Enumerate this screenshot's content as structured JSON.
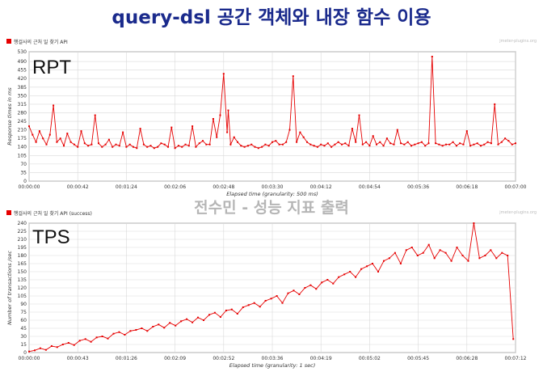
{
  "page": {
    "title": "query-dsl 공간 객체와 내장 함수 이용",
    "watermark": "전수민 - 성능 지표 출력",
    "brand": "jmeter-plugins.org"
  },
  "chart_data": [
    {
      "type": "line",
      "label": "RPT",
      "legend": "행걸사의 근처 일 찾기 API",
      "xlabel": "Elapsed time (granularity: 500 ms)",
      "ylabel": "Response times in ms",
      "ylim": [
        0,
        530
      ],
      "yticks": [
        0,
        35,
        70,
        105,
        140,
        175,
        210,
        245,
        280,
        315,
        350,
        385,
        420,
        455,
        490,
        530
      ],
      "xlim": [
        0,
        420
      ],
      "xticks": [
        "00:00:00",
        "00:00:42",
        "00:01:24",
        "00:02:06",
        "00:02:48",
        "00:03:30",
        "00:04:12",
        "00:04:54",
        "00:05:36",
        "00:06:18",
        "00:07:00"
      ],
      "grid": true,
      "color": "#e60000",
      "series": [
        {
          "x": [
            0,
            3,
            6,
            9,
            12,
            15,
            18,
            21,
            24,
            27,
            30,
            33,
            36,
            39,
            42,
            45,
            48,
            51,
            54,
            57,
            60,
            63,
            66,
            69,
            72,
            75,
            78,
            81,
            84,
            87,
            90,
            93,
            96,
            99,
            102,
            105,
            108,
            111,
            114,
            117,
            120,
            123,
            126,
            129,
            132,
            135,
            138,
            141,
            144,
            147,
            150,
            153,
            156,
            159,
            162,
            165,
            168,
            171,
            172,
            174,
            177,
            180,
            183,
            186,
            189,
            192,
            195,
            198,
            201,
            204,
            207,
            210,
            213,
            216,
            219,
            222,
            225,
            228,
            231,
            234,
            237,
            240,
            243,
            246,
            249,
            252,
            255,
            258,
            261,
            264,
            267,
            270,
            273,
            276,
            279,
            282,
            285,
            288,
            291,
            294,
            297,
            300,
            303,
            306,
            309,
            312,
            315,
            318,
            321,
            324,
            327,
            330,
            333,
            336,
            339,
            342,
            345,
            348,
            351,
            354,
            357,
            360,
            363,
            366,
            369,
            372,
            375,
            378,
            381,
            384,
            387,
            390,
            393,
            396,
            399,
            402,
            405,
            408,
            411,
            414,
            417,
            420
          ],
          "y": [
            225,
            190,
            160,
            205,
            175,
            150,
            190,
            310,
            160,
            175,
            145,
            195,
            160,
            150,
            140,
            205,
            155,
            145,
            150,
            270,
            155,
            140,
            150,
            170,
            140,
            150,
            145,
            200,
            140,
            150,
            140,
            135,
            215,
            150,
            140,
            145,
            135,
            140,
            155,
            150,
            140,
            220,
            135,
            145,
            140,
            150,
            145,
            225,
            140,
            155,
            165,
            150,
            150,
            255,
            180,
            270,
            440,
            200,
            290,
            150,
            180,
            160,
            145,
            140,
            145,
            150,
            140,
            135,
            140,
            150,
            145,
            160,
            165,
            150,
            150,
            160,
            210,
            430,
            160,
            200,
            180,
            160,
            150,
            145,
            140,
            150,
            145,
            155,
            140,
            150,
            160,
            150,
            155,
            145,
            215,
            160,
            270,
            150,
            160,
            145,
            185,
            150,
            160,
            145,
            175,
            155,
            150,
            210,
            155,
            150,
            160,
            145,
            150,
            155,
            160,
            145,
            155,
            510,
            155,
            150,
            145,
            150,
            150,
            160,
            145,
            155,
            150,
            205,
            145,
            150,
            155,
            145,
            150,
            160,
            155,
            315,
            150,
            160,
            175,
            165,
            150,
            155
          ]
        }
      ]
    },
    {
      "type": "line",
      "label": "TPS",
      "legend": "행걸사의 근처 일 찾기 API (success)",
      "xlabel": "Elapsed time (granularity: 1 sec)",
      "ylabel": "Number of transactions /sec",
      "ylim": [
        0,
        240
      ],
      "yticks": [
        0,
        15,
        30,
        45,
        60,
        75,
        90,
        105,
        120,
        135,
        150,
        165,
        180,
        195,
        210,
        225,
        240
      ],
      "xlim": [
        0,
        432
      ],
      "xticks": [
        "00:00:00",
        "00:00:43",
        "00:01:26",
        "00:02:09",
        "00:02:52",
        "00:03:36",
        "00:04:19",
        "00:05:02",
        "00:05:45",
        "00:06:28",
        "00:07:12"
      ],
      "grid": true,
      "color": "#e60000",
      "series": [
        {
          "x": [
            0,
            5,
            10,
            15,
            20,
            25,
            30,
            35,
            40,
            45,
            50,
            55,
            60,
            65,
            70,
            75,
            80,
            85,
            90,
            95,
            100,
            105,
            110,
            115,
            120,
            125,
            130,
            135,
            140,
            145,
            150,
            155,
            160,
            165,
            170,
            175,
            180,
            185,
            190,
            195,
            200,
            205,
            210,
            215,
            220,
            225,
            230,
            235,
            240,
            245,
            250,
            255,
            260,
            265,
            270,
            275,
            280,
            285,
            290,
            295,
            300,
            305,
            310,
            315,
            320,
            325,
            330,
            335,
            340,
            345,
            350,
            355,
            360,
            365,
            370,
            375,
            380,
            385,
            390,
            395,
            400,
            405,
            410,
            415,
            420,
            425,
            430
          ],
          "y": [
            2,
            4,
            8,
            5,
            12,
            10,
            15,
            18,
            14,
            22,
            25,
            20,
            28,
            30,
            26,
            35,
            38,
            33,
            40,
            42,
            45,
            40,
            48,
            52,
            46,
            55,
            50,
            58,
            62,
            56,
            65,
            60,
            70,
            74,
            66,
            78,
            80,
            72,
            84,
            88,
            92,
            85,
            96,
            100,
            105,
            92,
            110,
            115,
            108,
            120,
            125,
            118,
            130,
            135,
            128,
            140,
            145,
            150,
            140,
            155,
            160,
            165,
            150,
            170,
            175,
            185,
            165,
            190,
            195,
            180,
            185,
            200,
            175,
            190,
            185,
            170,
            195,
            180,
            170,
            240,
            175,
            180,
            190,
            175,
            185,
            180,
            25
          ]
        }
      ]
    }
  ]
}
